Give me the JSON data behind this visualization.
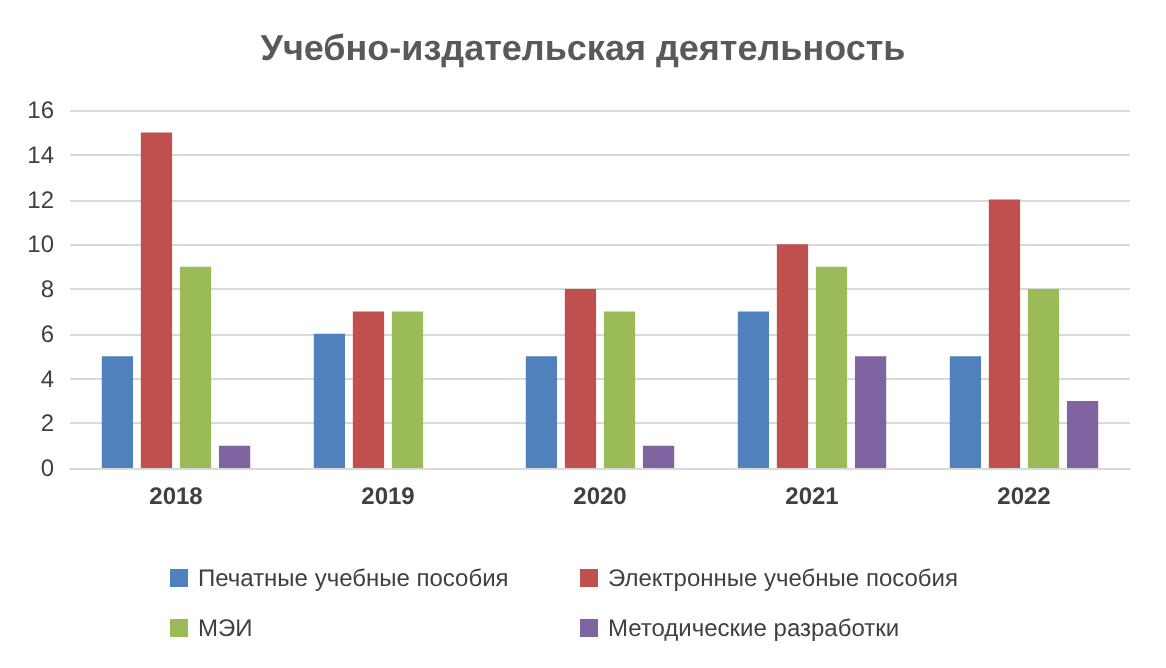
{
  "chart_data": {
    "type": "bar",
    "title": "Учебно-издательская деятельность",
    "categories": [
      "2018",
      "2019",
      "2020",
      "2021",
      "2022"
    ],
    "series": [
      {
        "name": "Печатные учебные пособия",
        "color": "#4f81bd",
        "values": [
          5,
          6,
          5,
          7,
          5
        ]
      },
      {
        "name": "Электронные учебные пособия",
        "color": "#c0504d",
        "values": [
          15,
          7,
          8,
          10,
          12
        ]
      },
      {
        "name": "МЭИ",
        "color": "#9bbb59",
        "values": [
          9,
          7,
          7,
          9,
          8
        ]
      },
      {
        "name": "Методические разработки",
        "color": "#8064a2",
        "values": [
          1,
          0,
          1,
          5,
          3
        ]
      }
    ],
    "ylim": [
      0,
      16
    ],
    "yticks": [
      0,
      2,
      4,
      6,
      8,
      10,
      12,
      14,
      16
    ],
    "grid": "y",
    "legend": "bottom"
  }
}
